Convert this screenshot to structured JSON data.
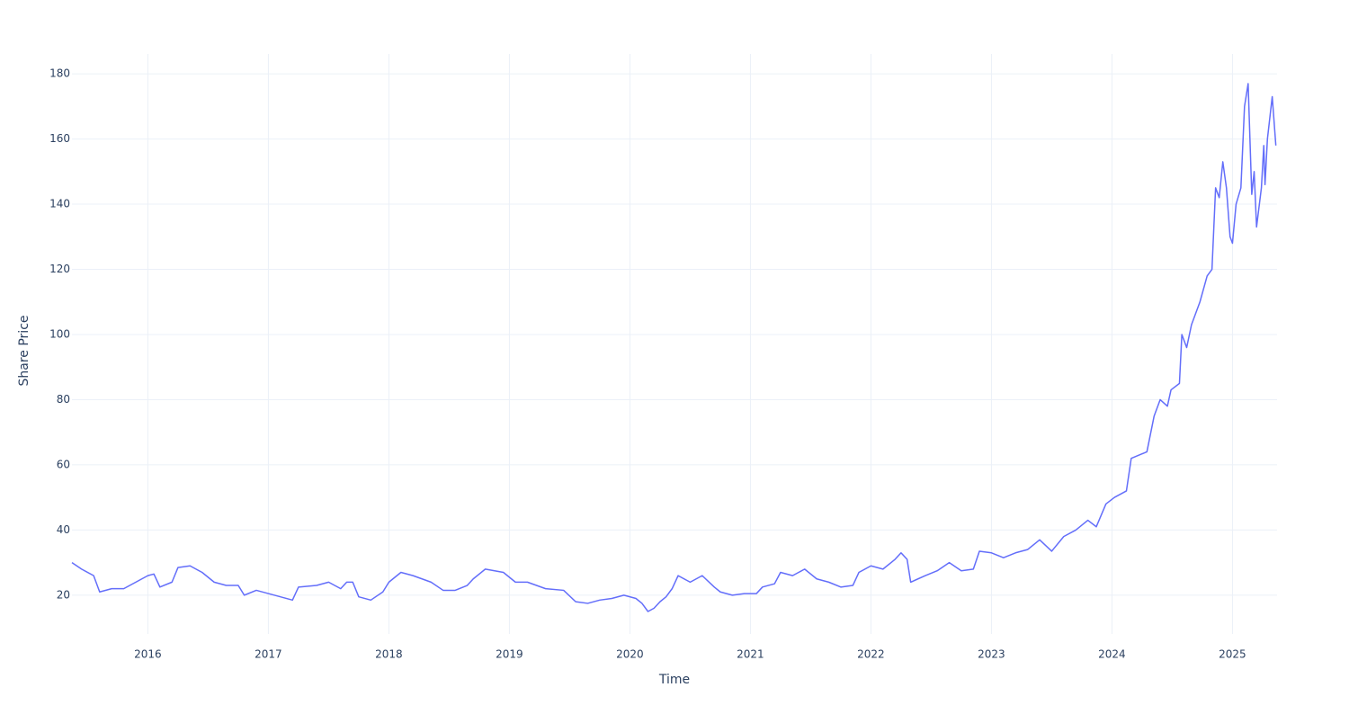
{
  "chart_data": {
    "type": "line",
    "xlabel": "Time",
    "ylabel": "Share Price",
    "x": [
      2015.37,
      2015.45,
      2015.55,
      2015.6,
      2015.7,
      2015.8,
      2015.9,
      2016.0,
      2016.05,
      2016.1,
      2016.2,
      2016.25,
      2016.35,
      2016.45,
      2016.55,
      2016.65,
      2016.75,
      2016.8,
      2016.9,
      2017.0,
      2017.1,
      2017.2,
      2017.25,
      2017.4,
      2017.5,
      2017.6,
      2017.65,
      2017.7,
      2017.75,
      2017.85,
      2017.95,
      2018.0,
      2018.1,
      2018.2,
      2018.35,
      2018.45,
      2018.55,
      2018.65,
      2018.7,
      2018.8,
      2018.95,
      2019.05,
      2019.15,
      2019.3,
      2019.45,
      2019.55,
      2019.65,
      2019.75,
      2019.85,
      2019.95,
      2020.05,
      2020.1,
      2020.15,
      2020.2,
      2020.25,
      2020.3,
      2020.35,
      2020.4,
      2020.5,
      2020.6,
      2020.7,
      2020.75,
      2020.85,
      2020.95,
      2021.05,
      2021.1,
      2021.2,
      2021.25,
      2021.35,
      2021.45,
      2021.55,
      2021.65,
      2021.75,
      2021.85,
      2021.9,
      2022.0,
      2022.1,
      2022.2,
      2022.25,
      2022.3,
      2022.33,
      2022.45,
      2022.55,
      2022.65,
      2022.75,
      2022.85,
      2022.9,
      2023.0,
      2023.1,
      2023.2,
      2023.3,
      2023.4,
      2023.5,
      2023.6,
      2023.7,
      2023.8,
      2023.87,
      2023.95,
      2024.02,
      2024.12,
      2024.16,
      2024.29,
      2024.35,
      2024.4,
      2024.46,
      2024.49,
      2024.56,
      2024.58,
      2024.62,
      2024.66,
      2024.73,
      2024.79,
      2024.83,
      2024.86,
      2024.89,
      2024.92,
      2024.95,
      2024.98,
      2025.0,
      2025.03,
      2025.07,
      2025.1,
      2025.13,
      2025.16,
      2025.18,
      2025.2,
      2025.24,
      2025.26,
      2025.27,
      2025.29,
      2025.33,
      2025.36
    ],
    "values": [
      30,
      28,
      26,
      21,
      22,
      22,
      24,
      26,
      26.5,
      22.5,
      24,
      28.5,
      29,
      27,
      24,
      23,
      23,
      20,
      21.5,
      20.5,
      19.5,
      18.5,
      22.5,
      23,
      24,
      22,
      24,
      24,
      19.5,
      18.5,
      21,
      24,
      27,
      26,
      24,
      21.5,
      21.5,
      23,
      25,
      28,
      27,
      24,
      24,
      22,
      21.5,
      18,
      17.5,
      18.5,
      19,
      20,
      19,
      17.5,
      15,
      16,
      18,
      19.5,
      22,
      26,
      24,
      26,
      22.5,
      21,
      20,
      20.5,
      20.5,
      22.5,
      23.5,
      27,
      26,
      28,
      25,
      24,
      22.5,
      23,
      27,
      29,
      28,
      31,
      33,
      31,
      24,
      26,
      27.5,
      30,
      27.5,
      28,
      33.5,
      33,
      31.5,
      33,
      34,
      37,
      33.5,
      38,
      40,
      43,
      41,
      48,
      50,
      52,
      62,
      64,
      75,
      80,
      78,
      83,
      85,
      100,
      96,
      103,
      110,
      118,
      120,
      145,
      142,
      153,
      145,
      130,
      128,
      140,
      145,
      170,
      177,
      143,
      150,
      133,
      145,
      158,
      146,
      160,
      173,
      158
    ],
    "color": "#636efa",
    "xlim": [
      2015.37,
      2025.37
    ],
    "xticks": [
      2016,
      2017,
      2018,
      2019,
      2020,
      2021,
      2022,
      2023,
      2024,
      2025
    ],
    "ylim": [
      8.1,
      186.1
    ],
    "yticks": [
      20,
      40,
      60,
      80,
      100,
      120,
      140,
      160,
      180
    ],
    "grid": true
  }
}
